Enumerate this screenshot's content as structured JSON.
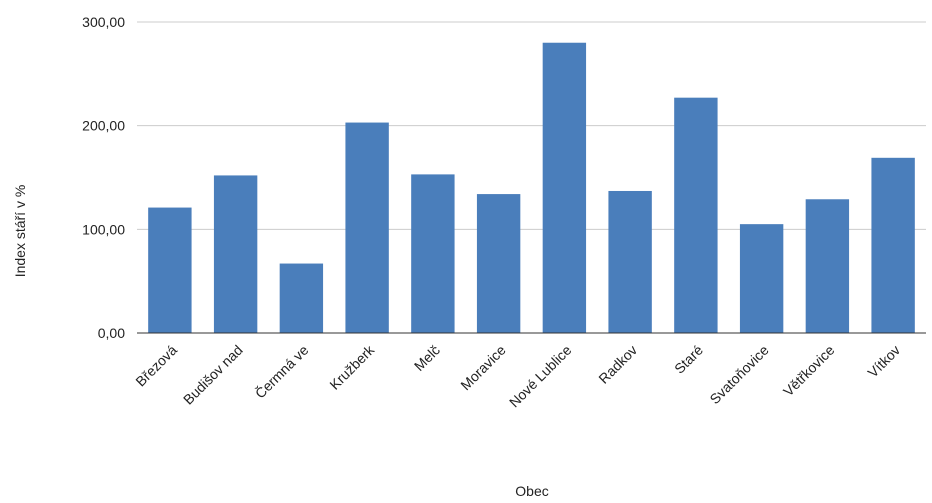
{
  "chart_data": {
    "type": "bar",
    "title": "",
    "xlabel": "Obec",
    "ylabel": "Index stáří v %",
    "categories": [
      "Březová",
      "Budišov nad",
      "Čermná ve",
      "Kružberk",
      "Melč",
      "Moravice",
      "Nové Lublice",
      "Radkov",
      "Staré",
      "Svatoňovice",
      "Větřkovice",
      "Vítkov"
    ],
    "values": [
      121,
      152,
      67,
      203,
      153,
      134,
      280,
      137,
      227,
      105,
      129,
      169
    ],
    "ylim": [
      0,
      300
    ],
    "yticks": [
      0,
      100,
      200,
      300
    ],
    "ytick_labels": [
      "0,00",
      "100,00",
      "200,00",
      "300,00"
    ],
    "grid": true,
    "legend": "none",
    "bar_color": "#4a7ebb",
    "grid_color": "#cccccc",
    "axis_color": "#333333"
  }
}
